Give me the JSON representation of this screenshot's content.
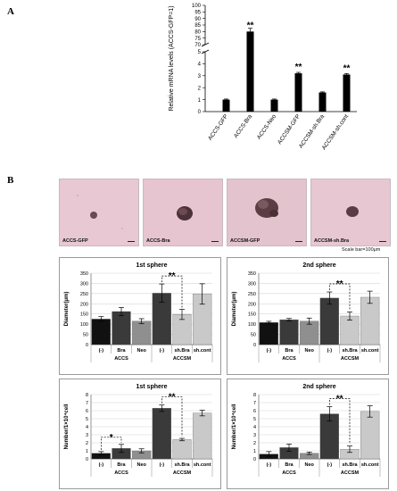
{
  "panel_a_letter": "A",
  "panel_b_letter": "B",
  "photos": [
    {
      "label": "ACCS-GFP"
    },
    {
      "label": "ACCS-Bra"
    },
    {
      "label": "ACCSM-GFP"
    },
    {
      "label": "ACCSM-sh.Bra"
    }
  ],
  "scale_note": "Scale bar=100μm",
  "colors": {
    "black": "#111111",
    "dark_gray": "#3a3a3a",
    "mid_gray": "#8f8f8f",
    "light_gray": "#c9c9c9",
    "photo_bg": "#e9c9d3"
  },
  "chart_data": [
    {
      "id": "chartA",
      "type": "bar",
      "ylabel": "Relative mRNA levels (ACCS-GFP=1)",
      "categories": [
        "ACCS-GFP",
        "ACCS-Bra",
        "ACCS-Neo",
        "ACCSM-GFP",
        "ACCSM-sh.Bra",
        "ACCSM-sh.cont"
      ],
      "values": [
        1.0,
        80,
        1.0,
        3.2,
        1.6,
        3.1
      ],
      "errors": [
        0.05,
        2.5,
        0.05,
        0.08,
        0.05,
        0.08
      ],
      "stars": [
        "",
        "**",
        "",
        "**",
        "",
        "**"
      ],
      "y_break": true,
      "lower_ticks": [
        0,
        1,
        2,
        3,
        4,
        5
      ],
      "upper_ticks": [
        70,
        75,
        80,
        85,
        90,
        95,
        100
      ],
      "grid": false
    },
    {
      "id": "chartB1",
      "type": "bar",
      "title": "1st sphere",
      "ylabel": "Diameter(μm)",
      "categories": [
        "(-)",
        "Bra",
        "Neo",
        "(-)",
        "sh.Bra",
        "sh.cont"
      ],
      "groups": [
        "ACCS",
        "ACCSM"
      ],
      "values": [
        125,
        162,
        115,
        252,
        148,
        248
      ],
      "errors": [
        12,
        20,
        12,
        45,
        25,
        50
      ],
      "ylim": [
        0,
        350
      ],
      "yticks": [
        0,
        50,
        100,
        150,
        200,
        250,
        300,
        350
      ],
      "significance": "**",
      "grid": true
    },
    {
      "id": "chartB2",
      "type": "bar",
      "title": "2nd sphere",
      "ylabel": "Diameter(μm)",
      "categories": [
        "(-)",
        "Bra",
        "Neo",
        "(-)",
        "sh.Bra",
        "sh.cont"
      ],
      "groups": [
        "ACCS",
        "ACCSM"
      ],
      "values": [
        108,
        122,
        115,
        228,
        140,
        232
      ],
      "errors": [
        6,
        6,
        15,
        30,
        20,
        30
      ],
      "ylim": [
        0,
        350
      ],
      "yticks": [
        0,
        50,
        100,
        150,
        200,
        250,
        300,
        350
      ],
      "significance": "**",
      "grid": true
    },
    {
      "id": "chartB3",
      "type": "bar",
      "title": "1st sphere",
      "ylabel": "Number/1×10⁴cell",
      "categories": [
        "(-)",
        "Bra",
        "Neo",
        "(-)",
        "sh.Bra",
        "sh.cont"
      ],
      "groups": [
        "ACCS",
        "ACCSM"
      ],
      "values": [
        0.7,
        1.3,
        1.0,
        6.3,
        2.4,
        5.7
      ],
      "errors": [
        0.2,
        0.5,
        0.25,
        0.4,
        0.15,
        0.35
      ],
      "ylim": [
        0,
        8
      ],
      "yticks": [
        0,
        1,
        2,
        3,
        4,
        5,
        6,
        7,
        8
      ],
      "significance": "**",
      "significance_accs": "*",
      "grid": true
    },
    {
      "id": "chartB4",
      "type": "bar",
      "title": "2nd sphere",
      "ylabel": "Number/1×10⁴cell",
      "categories": [
        "(-)",
        "Bra",
        "Neo",
        "(-)",
        "sh.Bra",
        "sh.cont"
      ],
      "groups": [
        "ACCS",
        "ACCSM"
      ],
      "values": [
        0.6,
        1.4,
        0.7,
        5.6,
        1.2,
        5.9
      ],
      "errors": [
        0.3,
        0.45,
        0.15,
        0.9,
        0.4,
        0.7
      ],
      "ylim": [
        0,
        8
      ],
      "yticks": [
        0,
        1,
        2,
        3,
        4,
        5,
        6,
        7,
        8
      ],
      "significance": "**",
      "grid": true
    }
  ]
}
